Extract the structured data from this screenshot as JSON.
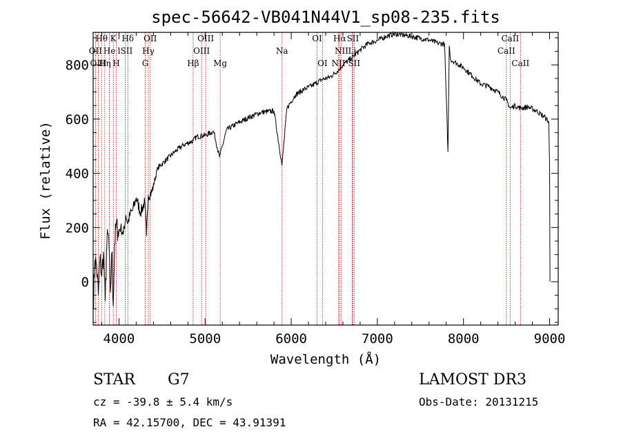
{
  "chart_data": {
    "type": "line",
    "title": "spec-56642-VB041N44V1_sp08-235.fits",
    "xlabel": "Wavelength (Å)",
    "ylabel": "Flux (relative)",
    "xlim": [
      3700,
      9100
    ],
    "ylim": [
      -160,
      920
    ],
    "x_ticks": [
      4000,
      5000,
      6000,
      7000,
      8000,
      9000
    ],
    "y_ticks": [
      0,
      200,
      400,
      600,
      800
    ],
    "spectrum": {
      "name": "flux",
      "x": [
        3700,
        3720,
        3740,
        3760,
        3780,
        3800,
        3820,
        3840,
        3860,
        3880,
        3900,
        3920,
        3933,
        3950,
        3968,
        3990,
        4020,
        4050,
        4080,
        4102,
        4130,
        4160,
        4200,
        4250,
        4300,
        4320,
        4340,
        4380,
        4450,
        4550,
        4650,
        4750,
        4861,
        4900,
        5000,
        5100,
        5167,
        5250,
        5350,
        5500,
        5650,
        5800,
        5893,
        5950,
        6050,
        6150,
        6250,
        6350,
        6450,
        6563,
        6600,
        6700,
        6800,
        6900,
        7000,
        7100,
        7200,
        7300,
        7400,
        7500,
        7600,
        7700,
        7780,
        7820,
        7835,
        7850,
        7900,
        8000,
        8100,
        8200,
        8300,
        8400,
        8498,
        8542,
        8600,
        8662,
        8750,
        8850,
        8950,
        8990,
        9000,
        9005
      ],
      "y": [
        -100,
        80,
        60,
        -50,
        90,
        20,
        110,
        -70,
        150,
        170,
        -40,
        110,
        -90,
        140,
        210,
        185,
        200,
        175,
        245,
        215,
        250,
        265,
        310,
        255,
        295,
        170,
        320,
        330,
        420,
        450,
        480,
        505,
        520,
        535,
        540,
        555,
        460,
        560,
        580,
        605,
        625,
        630,
        430,
        640,
        690,
        710,
        725,
        745,
        755,
        785,
        800,
        825,
        855,
        880,
        890,
        905,
        915,
        910,
        905,
        898,
        892,
        880,
        878,
        480,
        870,
        820,
        810,
        790,
        760,
        730,
        720,
        700,
        670,
        640,
        650,
        640,
        645,
        630,
        605,
        590,
        430,
        0
      ]
    },
    "spectral_lines": [
      {
        "label": "Hθ",
        "wavelength": 3798,
        "row": 0
      },
      {
        "label": "K",
        "wavelength": 3934,
        "row": 0
      },
      {
        "label": "Hδ",
        "wavelength": 4102,
        "row": 0
      },
      {
        "label": "OII",
        "wavelength": 4363,
        "row": 0
      },
      {
        "label": "OIII",
        "wavelength": 5007,
        "row": 0
      },
      {
        "label": "OI",
        "wavelength": 6300,
        "row": 0
      },
      {
        "label": "Hα",
        "wavelength": 6563,
        "row": 0
      },
      {
        "label": "SII",
        "wavelength": 6716,
        "row": 0
      },
      {
        "label": "CaII",
        "wavelength": 8542,
        "row": 0
      },
      {
        "label": "OII",
        "wavelength": 3727,
        "row": 1
      },
      {
        "label": "He",
        "wavelength": 3889,
        "row": 1
      },
      {
        "label": "lSII",
        "wavelength": 4072,
        "row": 1
      },
      {
        "label": "Hγ",
        "wavelength": 4341,
        "row": 1
      },
      {
        "label": "OIII",
        "wavelength": 4959,
        "row": 1
      },
      {
        "label": "Na",
        "wavelength": 5893,
        "row": 1
      },
      {
        "label": "NII",
        "wavelength": 6584,
        "row": 1
      },
      {
        "label": "Li",
        "wavelength": 6708,
        "row": 1
      },
      {
        "label": "CaII",
        "wavelength": 8498,
        "row": 1
      },
      {
        "label": "OIII",
        "wavelength": 3760,
        "row": 2
      },
      {
        "label": "Hη",
        "wavelength": 3835,
        "row": 2
      },
      {
        "label": "H",
        "wavelength": 3968,
        "row": 2
      },
      {
        "label": "G",
        "wavelength": 4305,
        "row": 2
      },
      {
        "label": "Hβ",
        "wavelength": 4861,
        "row": 2
      },
      {
        "label": "Mg",
        "wavelength": 5175,
        "row": 2
      },
      {
        "label": "OI",
        "wavelength": 6363,
        "row": 2
      },
      {
        "label": "NII",
        "wavelength": 6548,
        "row": 2
      },
      {
        "label": "SII",
        "wavelength": 6731,
        "row": 2
      },
      {
        "label": "CaII",
        "wavelength": 8662,
        "row": 2
      }
    ],
    "colors": {
      "spectrum": "#000000",
      "lines": "#cc0000",
      "axis": "#000000"
    }
  },
  "info": {
    "object_class": "STAR",
    "subclass": "G7",
    "redshift_text": "cz = -39.8 ± 5.4 km/s",
    "coords_text": "RA =  42.15700, DEC =  43.91391",
    "survey": "LAMOST DR3",
    "obs_date_text": "Obs-Date: 20131215"
  }
}
